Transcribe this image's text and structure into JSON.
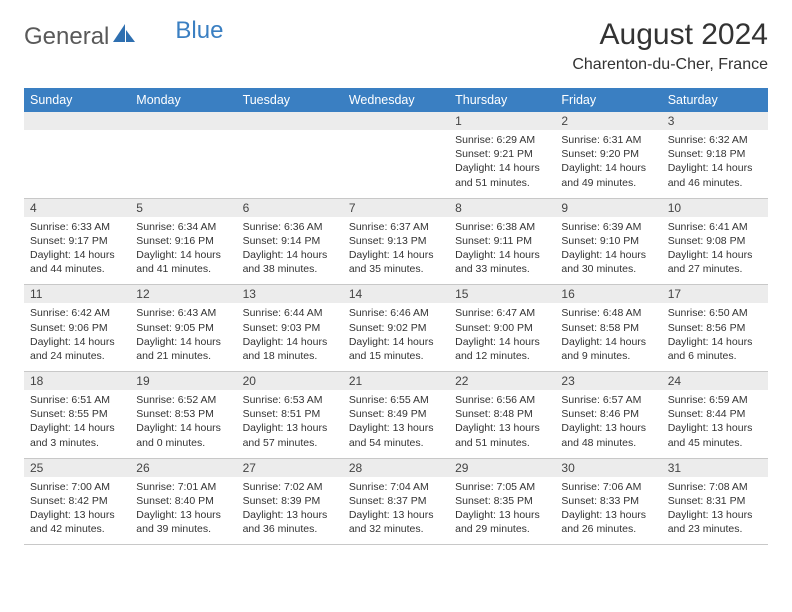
{
  "brand": {
    "part1": "General",
    "part2": "Blue"
  },
  "title": "August 2024",
  "location": "Charenton-du-Cher, France",
  "colors": {
    "header_bg": "#3a7fc2",
    "header_fg": "#ffffff",
    "daynum_bg": "#ececec",
    "border": "#c8c8c8",
    "text": "#333333",
    "page_bg": "#ffffff"
  },
  "weekdays": [
    "Sunday",
    "Monday",
    "Tuesday",
    "Wednesday",
    "Thursday",
    "Friday",
    "Saturday"
  ],
  "weeks": [
    [
      {
        "n": "",
        "lines": []
      },
      {
        "n": "",
        "lines": []
      },
      {
        "n": "",
        "lines": []
      },
      {
        "n": "",
        "lines": []
      },
      {
        "n": "1",
        "lines": [
          "Sunrise: 6:29 AM",
          "Sunset: 9:21 PM",
          "Daylight: 14 hours",
          "and 51 minutes."
        ]
      },
      {
        "n": "2",
        "lines": [
          "Sunrise: 6:31 AM",
          "Sunset: 9:20 PM",
          "Daylight: 14 hours",
          "and 49 minutes."
        ]
      },
      {
        "n": "3",
        "lines": [
          "Sunrise: 6:32 AM",
          "Sunset: 9:18 PM",
          "Daylight: 14 hours",
          "and 46 minutes."
        ]
      }
    ],
    [
      {
        "n": "4",
        "lines": [
          "Sunrise: 6:33 AM",
          "Sunset: 9:17 PM",
          "Daylight: 14 hours",
          "and 44 minutes."
        ]
      },
      {
        "n": "5",
        "lines": [
          "Sunrise: 6:34 AM",
          "Sunset: 9:16 PM",
          "Daylight: 14 hours",
          "and 41 minutes."
        ]
      },
      {
        "n": "6",
        "lines": [
          "Sunrise: 6:36 AM",
          "Sunset: 9:14 PM",
          "Daylight: 14 hours",
          "and 38 minutes."
        ]
      },
      {
        "n": "7",
        "lines": [
          "Sunrise: 6:37 AM",
          "Sunset: 9:13 PM",
          "Daylight: 14 hours",
          "and 35 minutes."
        ]
      },
      {
        "n": "8",
        "lines": [
          "Sunrise: 6:38 AM",
          "Sunset: 9:11 PM",
          "Daylight: 14 hours",
          "and 33 minutes."
        ]
      },
      {
        "n": "9",
        "lines": [
          "Sunrise: 6:39 AM",
          "Sunset: 9:10 PM",
          "Daylight: 14 hours",
          "and 30 minutes."
        ]
      },
      {
        "n": "10",
        "lines": [
          "Sunrise: 6:41 AM",
          "Sunset: 9:08 PM",
          "Daylight: 14 hours",
          "and 27 minutes."
        ]
      }
    ],
    [
      {
        "n": "11",
        "lines": [
          "Sunrise: 6:42 AM",
          "Sunset: 9:06 PM",
          "Daylight: 14 hours",
          "and 24 minutes."
        ]
      },
      {
        "n": "12",
        "lines": [
          "Sunrise: 6:43 AM",
          "Sunset: 9:05 PM",
          "Daylight: 14 hours",
          "and 21 minutes."
        ]
      },
      {
        "n": "13",
        "lines": [
          "Sunrise: 6:44 AM",
          "Sunset: 9:03 PM",
          "Daylight: 14 hours",
          "and 18 minutes."
        ]
      },
      {
        "n": "14",
        "lines": [
          "Sunrise: 6:46 AM",
          "Sunset: 9:02 PM",
          "Daylight: 14 hours",
          "and 15 minutes."
        ]
      },
      {
        "n": "15",
        "lines": [
          "Sunrise: 6:47 AM",
          "Sunset: 9:00 PM",
          "Daylight: 14 hours",
          "and 12 minutes."
        ]
      },
      {
        "n": "16",
        "lines": [
          "Sunrise: 6:48 AM",
          "Sunset: 8:58 PM",
          "Daylight: 14 hours",
          "and 9 minutes."
        ]
      },
      {
        "n": "17",
        "lines": [
          "Sunrise: 6:50 AM",
          "Sunset: 8:56 PM",
          "Daylight: 14 hours",
          "and 6 minutes."
        ]
      }
    ],
    [
      {
        "n": "18",
        "lines": [
          "Sunrise: 6:51 AM",
          "Sunset: 8:55 PM",
          "Daylight: 14 hours",
          "and 3 minutes."
        ]
      },
      {
        "n": "19",
        "lines": [
          "Sunrise: 6:52 AM",
          "Sunset: 8:53 PM",
          "Daylight: 14 hours",
          "and 0 minutes."
        ]
      },
      {
        "n": "20",
        "lines": [
          "Sunrise: 6:53 AM",
          "Sunset: 8:51 PM",
          "Daylight: 13 hours",
          "and 57 minutes."
        ]
      },
      {
        "n": "21",
        "lines": [
          "Sunrise: 6:55 AM",
          "Sunset: 8:49 PM",
          "Daylight: 13 hours",
          "and 54 minutes."
        ]
      },
      {
        "n": "22",
        "lines": [
          "Sunrise: 6:56 AM",
          "Sunset: 8:48 PM",
          "Daylight: 13 hours",
          "and 51 minutes."
        ]
      },
      {
        "n": "23",
        "lines": [
          "Sunrise: 6:57 AM",
          "Sunset: 8:46 PM",
          "Daylight: 13 hours",
          "and 48 minutes."
        ]
      },
      {
        "n": "24",
        "lines": [
          "Sunrise: 6:59 AM",
          "Sunset: 8:44 PM",
          "Daylight: 13 hours",
          "and 45 minutes."
        ]
      }
    ],
    [
      {
        "n": "25",
        "lines": [
          "Sunrise: 7:00 AM",
          "Sunset: 8:42 PM",
          "Daylight: 13 hours",
          "and 42 minutes."
        ]
      },
      {
        "n": "26",
        "lines": [
          "Sunrise: 7:01 AM",
          "Sunset: 8:40 PM",
          "Daylight: 13 hours",
          "and 39 minutes."
        ]
      },
      {
        "n": "27",
        "lines": [
          "Sunrise: 7:02 AM",
          "Sunset: 8:39 PM",
          "Daylight: 13 hours",
          "and 36 minutes."
        ]
      },
      {
        "n": "28",
        "lines": [
          "Sunrise: 7:04 AM",
          "Sunset: 8:37 PM",
          "Daylight: 13 hours",
          "and 32 minutes."
        ]
      },
      {
        "n": "29",
        "lines": [
          "Sunrise: 7:05 AM",
          "Sunset: 8:35 PM",
          "Daylight: 13 hours",
          "and 29 minutes."
        ]
      },
      {
        "n": "30",
        "lines": [
          "Sunrise: 7:06 AM",
          "Sunset: 8:33 PM",
          "Daylight: 13 hours",
          "and 26 minutes."
        ]
      },
      {
        "n": "31",
        "lines": [
          "Sunrise: 7:08 AM",
          "Sunset: 8:31 PM",
          "Daylight: 13 hours",
          "and 23 minutes."
        ]
      }
    ]
  ]
}
